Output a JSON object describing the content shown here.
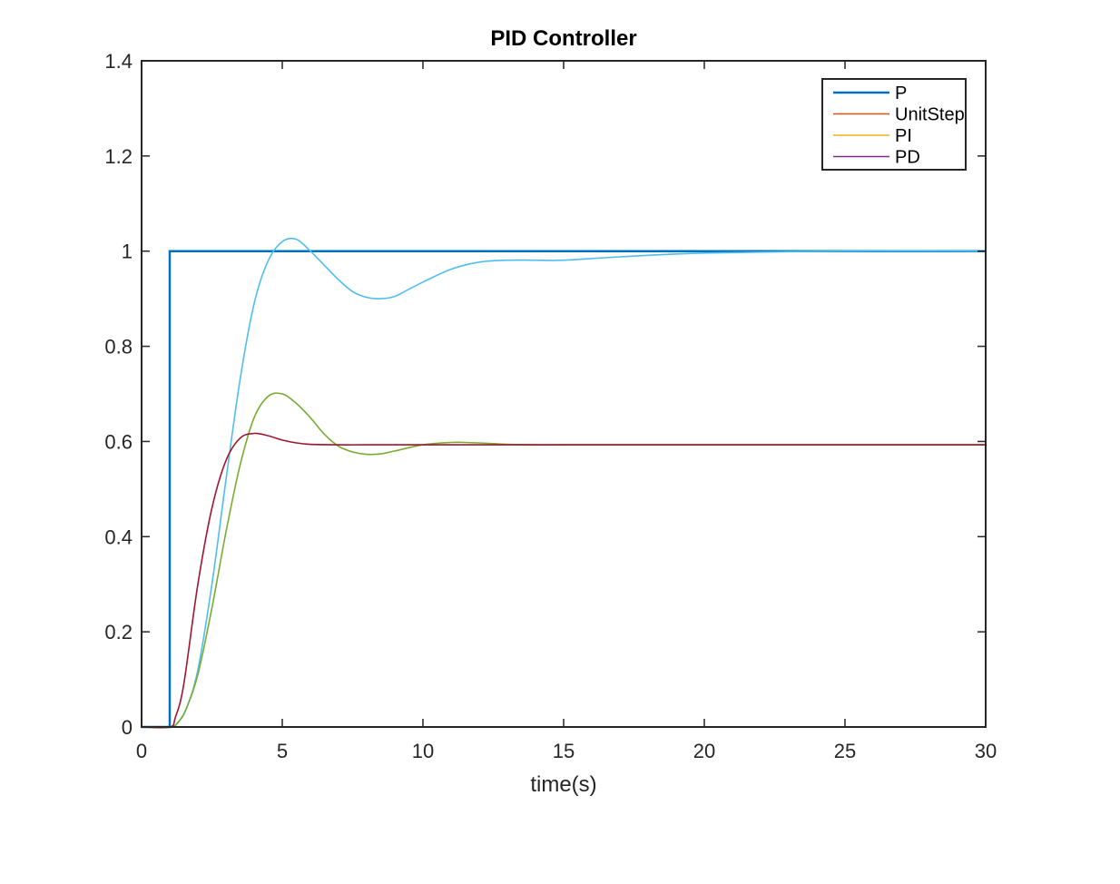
{
  "chart_data": {
    "type": "line",
    "title": "PID Controller",
    "xlabel": "time(s)",
    "ylabel": "",
    "xlim": [
      0,
      30
    ],
    "ylim": [
      0,
      1.4
    ],
    "xticks": [
      "0",
      "5",
      "10",
      "15",
      "20",
      "25",
      "30"
    ],
    "yticks": [
      "0",
      "0.2",
      "0.4",
      "0.6",
      "0.8",
      "1",
      "1.2",
      "1.4"
    ],
    "grid": false,
    "legend_position": "top-right",
    "legend": [
      {
        "label": "P",
        "color": "#0072BD"
      },
      {
        "label": "UnitStep",
        "color": "#D95319"
      },
      {
        "label": "PI",
        "color": "#EDB120"
      },
      {
        "label": "PD",
        "color": "#7E2F8E"
      }
    ],
    "series": [
      {
        "name": "P",
        "color": "#0072BD",
        "x": [
          0,
          1,
          1,
          30
        ],
        "y": [
          0,
          0,
          1,
          1
        ]
      },
      {
        "color": "#4DBEEE",
        "x": [
          0,
          1,
          1.3,
          1.6,
          2,
          2.5,
          3,
          3.5,
          4,
          4.5,
          5,
          5.5,
          6,
          6.5,
          7,
          7.5,
          8,
          8.5,
          9,
          9.5,
          10,
          11,
          12,
          13,
          14,
          15,
          17,
          20,
          25,
          30
        ],
        "y": [
          0,
          0,
          0.01,
          0.04,
          0.12,
          0.3,
          0.52,
          0.73,
          0.89,
          0.98,
          1.02,
          1.025,
          1.0,
          0.97,
          0.94,
          0.915,
          0.903,
          0.9,
          0.905,
          0.92,
          0.935,
          0.962,
          0.977,
          0.981,
          0.981,
          0.981,
          0.988,
          0.996,
          1.0,
          1.0
        ]
      },
      {
        "color": "#77AC30",
        "x": [
          0,
          1,
          1.3,
          1.6,
          2,
          2.5,
          3,
          3.5,
          4,
          4.5,
          5,
          5.5,
          6,
          6.5,
          7,
          7.5,
          8,
          8.5,
          9,
          10,
          11,
          11.5,
          12,
          13,
          14,
          15,
          20,
          30
        ],
        "y": [
          0,
          0,
          0.01,
          0.04,
          0.11,
          0.25,
          0.41,
          0.55,
          0.65,
          0.695,
          0.7,
          0.68,
          0.65,
          0.615,
          0.59,
          0.578,
          0.573,
          0.574,
          0.58,
          0.593,
          0.598,
          0.598,
          0.597,
          0.594,
          0.593,
          0.593,
          0.593,
          0.593
        ]
      },
      {
        "color": "#A2142F",
        "x": [
          0,
          1,
          1.2,
          1.5,
          2,
          2.5,
          3,
          3.5,
          4,
          4.5,
          5,
          5.5,
          6,
          7,
          8,
          10,
          15,
          20,
          30
        ],
        "y": [
          0,
          0,
          0.02,
          0.09,
          0.3,
          0.46,
          0.56,
          0.607,
          0.617,
          0.612,
          0.603,
          0.597,
          0.594,
          0.593,
          0.593,
          0.593,
          0.593,
          0.593,
          0.593
        ]
      }
    ]
  }
}
